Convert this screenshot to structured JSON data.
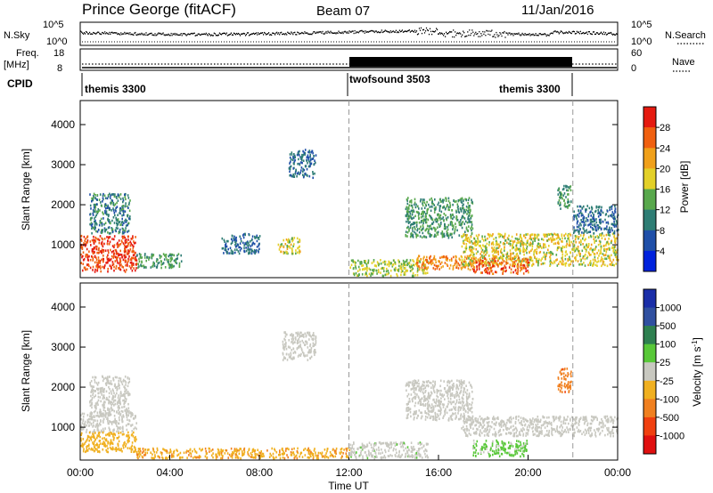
{
  "header": {
    "station": "Prince George (fitACF)",
    "beam": "Beam 07",
    "date": "11/Jan/2016"
  },
  "top_panels": {
    "nsky_label": "N.Sky",
    "nsearch_label": "N.Search",
    "nsky_ticks_left": [
      "10^5",
      "10^0"
    ],
    "nsky_ticks_right": [
      "10^5",
      "10^0"
    ],
    "freq_label": "Freq.",
    "freq_unit": "[MHz]",
    "freq_ticks": [
      "18",
      "8"
    ],
    "nave_label": "Nave",
    "nave_ticks": [
      "60",
      "0"
    ],
    "cpid_label": "CPID",
    "cpid_segments": [
      {
        "name": "themis 3300",
        "start_hour": 0,
        "end_hour": 12
      },
      {
        "name": "twofsound 3503",
        "start_hour": 12,
        "end_hour": 22
      },
      {
        "name": "themis 3300",
        "start_hour": 22,
        "end_hour": 24
      }
    ]
  },
  "chart_data": [
    {
      "type": "heatmap",
      "title": "",
      "xlabel": "",
      "ylabel": "Slant Range [km]",
      "xlim": [
        0,
        24
      ],
      "ylim": [
        180,
        4600
      ],
      "yticks": [
        "1000",
        "2000",
        "3000",
        "4000"
      ],
      "colorbar": {
        "label": "Power [dB]",
        "range": [
          0,
          32
        ],
        "ticks": [
          "4",
          "8",
          "12",
          "16",
          "20",
          "24",
          "28"
        ],
        "colors": [
          "#0022dd",
          "#1f4fa8",
          "#2e7d74",
          "#58a84c",
          "#e3d028",
          "#f0a01a",
          "#f06010",
          "#e51a10"
        ]
      },
      "regions": [
        {
          "t0": 0.0,
          "t1": 2.5,
          "r0": 350,
          "r1": 1250,
          "v": 28
        },
        {
          "t0": 0.4,
          "t1": 2.2,
          "r0": 1300,
          "r1": 2300,
          "v": 10
        },
        {
          "t0": 2.5,
          "t1": 4.5,
          "r0": 450,
          "r1": 800,
          "v": 12
        },
        {
          "t0": 6.3,
          "t1": 8.0,
          "r0": 800,
          "r1": 1300,
          "v": 8
        },
        {
          "t0": 8.8,
          "t1": 9.8,
          "r0": 800,
          "r1": 1200,
          "v": 18
        },
        {
          "t0": 9.3,
          "t1": 10.5,
          "r0": 2700,
          "r1": 3400,
          "v": 8
        },
        {
          "t0": 12.0,
          "t1": 15.5,
          "r0": 250,
          "r1": 650,
          "v": 16
        },
        {
          "t0": 15.0,
          "t1": 17.5,
          "r0": 400,
          "r1": 750,
          "v": 24
        },
        {
          "t0": 14.5,
          "t1": 17.5,
          "r0": 1200,
          "r1": 2200,
          "v": 12
        },
        {
          "t0": 17.0,
          "t1": 24.0,
          "r0": 500,
          "r1": 1300,
          "v": 18
        },
        {
          "t0": 17.5,
          "t1": 20.0,
          "r0": 300,
          "r1": 700,
          "v": 26
        },
        {
          "t0": 21.3,
          "t1": 21.9,
          "r0": 1900,
          "r1": 2500,
          "v": 12
        },
        {
          "t0": 22.0,
          "t1": 24.0,
          "r0": 1300,
          "r1": 2000,
          "v": 8
        }
      ]
    },
    {
      "type": "heatmap",
      "title": "",
      "xlabel": "Time UT",
      "ylabel": "Slant Range [km]",
      "xlim": [
        0,
        24
      ],
      "ylim": [
        180,
        4600
      ],
      "yticks": [
        "1000",
        "2000",
        "3000",
        "4000"
      ],
      "xticks": [
        "00:00",
        "04:00",
        "08:00",
        "12:00",
        "16:00",
        "20:00",
        "00:00"
      ],
      "colorbar": {
        "label": "Velocity [m s^-1]",
        "range": [
          -1000,
          1000
        ],
        "ticks": [
          "1000",
          "500",
          "100",
          "25",
          "-25",
          "-100",
          "-500",
          "-1000"
        ],
        "colors": [
          "#1a2ea8",
          "#3050a0",
          "#2e8050",
          "#58c838",
          "#c8c8c0",
          "#f0b020",
          "#f08020",
          "#f04010",
          "#e01010"
        ]
      },
      "regions": [
        {
          "t0": 0.0,
          "t1": 2.5,
          "r0": 900,
          "r1": 1400,
          "v": 0
        },
        {
          "t0": 0.0,
          "t1": 2.5,
          "r0": 400,
          "r1": 900,
          "v": -200
        },
        {
          "t0": 0.4,
          "t1": 2.2,
          "r0": 1300,
          "r1": 2300,
          "v": -50
        },
        {
          "t0": 2.5,
          "t1": 12.0,
          "r0": 250,
          "r1": 500,
          "v": -300
        },
        {
          "t0": 9.0,
          "t1": 10.5,
          "r0": 2700,
          "r1": 3400,
          "v": 0
        },
        {
          "t0": 12.0,
          "t1": 15.5,
          "r0": 250,
          "r1": 650,
          "v": 60
        },
        {
          "t0": 14.5,
          "t1": 17.5,
          "r0": 1200,
          "r1": 2200,
          "v": 0
        },
        {
          "t0": 17.0,
          "t1": 24.0,
          "r0": 800,
          "r1": 1300,
          "v": 0
        },
        {
          "t0": 17.5,
          "t1": 20.0,
          "r0": 300,
          "r1": 700,
          "v": 150
        },
        {
          "t0": 21.3,
          "t1": 21.9,
          "r0": 1900,
          "r1": 2500,
          "v": -500
        }
      ]
    }
  ],
  "scan_markers_hours": [
    12,
    22
  ]
}
